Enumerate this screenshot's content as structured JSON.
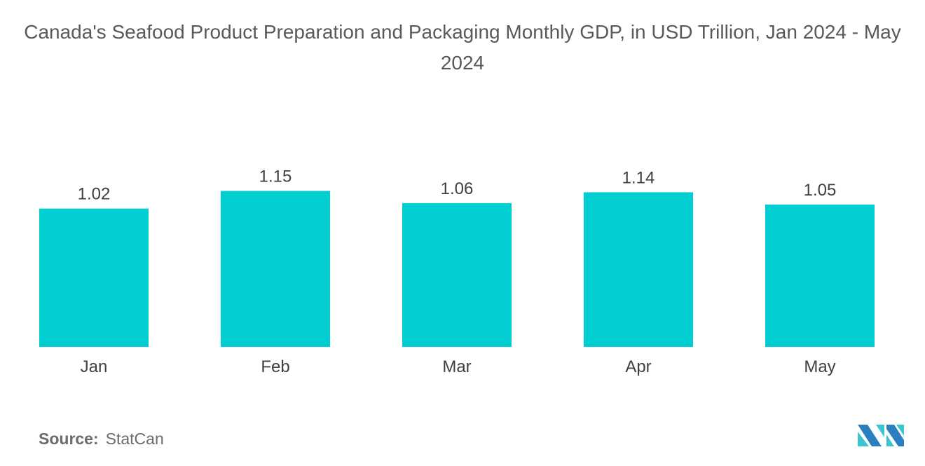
{
  "chart_data": {
    "type": "bar",
    "title": "Canada's Seafood Product Preparation and Packaging Monthly GDP, in USD Trillion, Jan 2024 - May 2024",
    "categories": [
      "Jan",
      "Feb",
      "Mar",
      "Apr",
      "May"
    ],
    "values": [
      1.02,
      1.15,
      1.06,
      1.14,
      1.05
    ],
    "data_labels": [
      "1.02",
      "1.15",
      "1.06",
      "1.14",
      "1.05"
    ],
    "xlabel": "",
    "ylabel": "",
    "ylim": [
      0,
      1.3
    ],
    "grid": false,
    "y_axis_shown": false,
    "bar_color": "#00CED1"
  },
  "source": {
    "label": "Source:",
    "value": "StatCan"
  },
  "logo": {
    "name": "mordor-intelligence-logo",
    "colors": [
      "#2A7FC0",
      "#3CC5D0"
    ]
  }
}
